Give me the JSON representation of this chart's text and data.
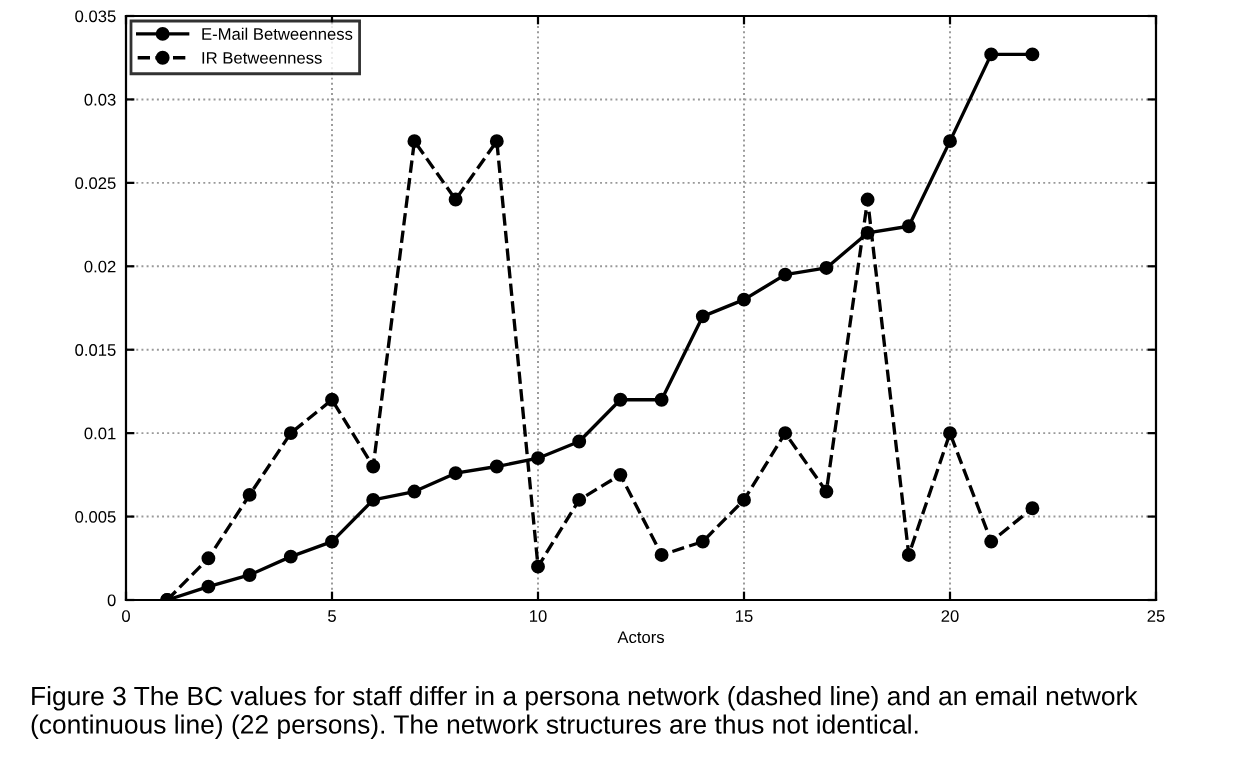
{
  "chart_data": {
    "type": "line",
    "xlabel": "Actors",
    "x": [
      1,
      2,
      3,
      4,
      5,
      6,
      7,
      8,
      9,
      10,
      11,
      12,
      13,
      14,
      15,
      16,
      17,
      18,
      19,
      20,
      21,
      22
    ],
    "series": [
      {
        "name": "E-Mail Betweenness",
        "color": "#000000",
        "line_style": "solid",
        "values": [
          0,
          0.0008,
          0.0015,
          0.0026,
          0.0035,
          0.006,
          0.0065,
          0.0076,
          0.008,
          0.0085,
          0.0095,
          0.012,
          0.012,
          0.017,
          0.018,
          0.0195,
          0.0199,
          0.022,
          0.0224,
          0.0275,
          0.0327,
          0.0327
        ]
      },
      {
        "name": "IR Betweenness",
        "color": "#000000",
        "line_style": "dashed",
        "values": [
          0,
          0.0025,
          0.0063,
          0.01,
          0.012,
          0.008,
          0.0275,
          0.024,
          0.0275,
          0.002,
          0.006,
          0.0075,
          0.0027,
          0.0035,
          0.006,
          0.01,
          0.0065,
          0.024,
          0.0027,
          0.01,
          0.0035,
          0.0055
        ]
      }
    ],
    "xlim": [
      0,
      25
    ],
    "xticks": [
      0,
      5,
      10,
      15,
      20,
      25
    ],
    "ylim": [
      0,
      0.035
    ],
    "yticks": [
      {
        "value": 0,
        "label": "0"
      },
      {
        "value": 0.005,
        "label": "0.005"
      },
      {
        "value": 0.01,
        "label": "0.01"
      },
      {
        "value": 0.015,
        "label": "0.015"
      },
      {
        "value": 0.02,
        "label": "0.02"
      },
      {
        "value": 0.025,
        "label": "0.025"
      },
      {
        "value": 0.03,
        "label": "0.03"
      },
      {
        "value": 0.035,
        "label": "0.035"
      }
    ],
    "grid": true,
    "legend": "top left",
    "marker": "circle",
    "annotations": [
      "Figure 3 The BC values for staff differ in a persona network (dashed line) and an email network (continuous line) (22 persons). The network structures are thus not identical."
    ]
  }
}
